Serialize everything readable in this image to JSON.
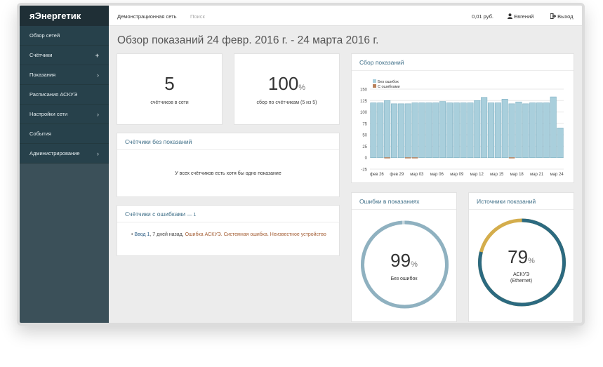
{
  "app": {
    "brand": "яЭнергетик"
  },
  "sidebar": {
    "items": [
      {
        "label": "Обзор сетей",
        "icon": ""
      },
      {
        "label": "Счётчики",
        "icon": "+"
      },
      {
        "label": "Показания",
        "icon": "›"
      },
      {
        "label": "Расписания АСКУЭ",
        "icon": ""
      },
      {
        "label": "Настройки сети",
        "icon": "›"
      },
      {
        "label": "События",
        "icon": ""
      },
      {
        "label": "Администрирование",
        "icon": "›"
      }
    ]
  },
  "topbar": {
    "network": "Демонстрационная сеть",
    "search_placeholder": "Поиск",
    "balance": "0,01 руб.",
    "user": "Евгений",
    "logout": "Выход"
  },
  "page": {
    "title": "Обзор показаний 24 февр. 2016 г. - 24 марта 2016 г."
  },
  "stats": {
    "meters": {
      "value": "5",
      "label": "счётчиков в сети"
    },
    "collection": {
      "value": "100",
      "unit": "%",
      "label": "сбор по счётчикам (5 из 5)"
    }
  },
  "no_readings": {
    "title": "Счётчики без показаний",
    "message": "У всех счётчиков есть хотя бы одно показание"
  },
  "errors_card": {
    "title": "Счётчики с ошибками",
    "count": "— 1",
    "entry_link": "Ввод 1",
    "entry_time": ", 7 дней назад,",
    "entry_error": "Ошибка АСКУЭ. Системная ошибка. Неизвестное устройство"
  },
  "chart_data": {
    "type": "bar",
    "title": "Сбор показаний",
    "x_tick_labels": [
      "фев 26",
      "фев 29",
      "мар 03",
      "мар 06",
      "мар 09",
      "мар 12",
      "мар 15",
      "мар 18",
      "мар 21",
      "мар 24"
    ],
    "ylim": [
      -25,
      150
    ],
    "y_ticks": [
      -25,
      0,
      25,
      50,
      75,
      100,
      125,
      150
    ],
    "grid": true,
    "legend_position": "top-left",
    "series": [
      {
        "name": "Без ошибок",
        "color": "#a9cfdc",
        "values": [
          120,
          120,
          120,
          120,
          120,
          120,
          120,
          120,
          120,
          120,
          120,
          120,
          120,
          120,
          120,
          120,
          120,
          120,
          120,
          120,
          120,
          120,
          120,
          120,
          120,
          120,
          120,
          65
        ]
      },
      {
        "name": "С ошибками",
        "color": "#b8805a",
        "values": [
          0,
          0,
          0,
          0,
          0,
          0,
          0,
          0,
          0,
          0,
          0,
          0,
          0,
          0,
          0,
          0,
          0,
          0,
          0,
          0,
          0,
          0,
          0,
          0,
          0,
          0,
          0,
          0
        ]
      }
    ],
    "totals": [
      120,
      120,
      125,
      118,
      118,
      118,
      120,
      120,
      120,
      120,
      123,
      120,
      120,
      120,
      120,
      125,
      132,
      120,
      120,
      128,
      118,
      122,
      118,
      120,
      120,
      120,
      133,
      65
    ],
    "error_markers": [
      2,
      5,
      6,
      20
    ]
  },
  "gauges": {
    "errors": {
      "title": "Ошибки в показаниях",
      "value": 99,
      "unit": "%",
      "label": "Без ошибок",
      "color": "#8fb1c0",
      "accent": "#c9d9e0"
    },
    "sources": {
      "title": "Источники показаний",
      "value": 79,
      "unit": "%",
      "label": "АСКУЭ",
      "sublabel": "(Ethernet)",
      "color": "#2c6a80",
      "accent": "#d4ad4c"
    }
  },
  "colors": {
    "sidebar": "#3b5059",
    "brand_bg": "#1f2f36",
    "accent": "#3f6f88"
  }
}
